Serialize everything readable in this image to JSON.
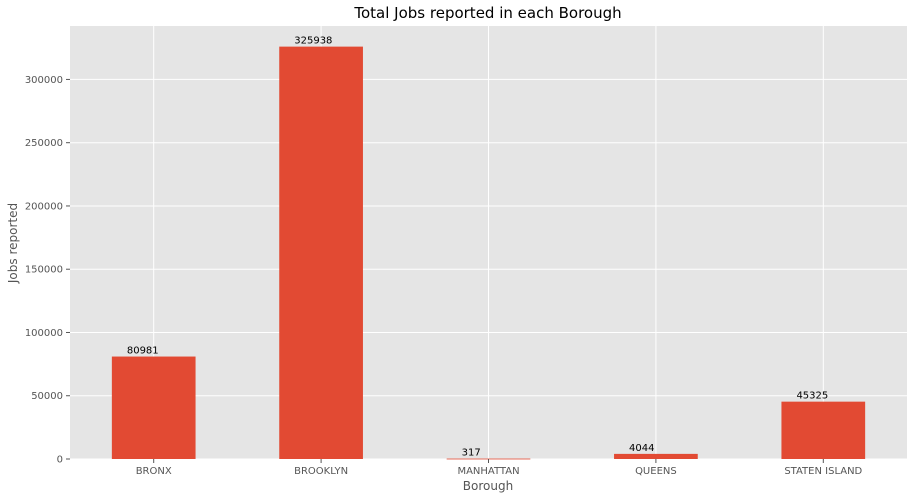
{
  "chart_data": {
    "type": "bar",
    "title": "Total Jobs reported in each Borough",
    "xlabel": "Borough",
    "ylabel": "Jobs reported",
    "categories": [
      "BRONX",
      "BROOKLYN",
      "MANHATTAN",
      "QUEENS",
      "STATEN ISLAND"
    ],
    "values": [
      80981,
      325938,
      317,
      4044,
      45325
    ],
    "data_labels": [
      "80981",
      "325938",
      "317",
      "4044",
      "45325"
    ],
    "yticks": [
      0,
      50000,
      100000,
      150000,
      200000,
      250000,
      300000
    ],
    "ylim": [
      0,
      342235
    ],
    "grid": true,
    "legend": "none",
    "colors": {
      "bar": "#E24A33",
      "plot_background": "#E5E5E5",
      "grid": "#FFFFFF"
    }
  }
}
